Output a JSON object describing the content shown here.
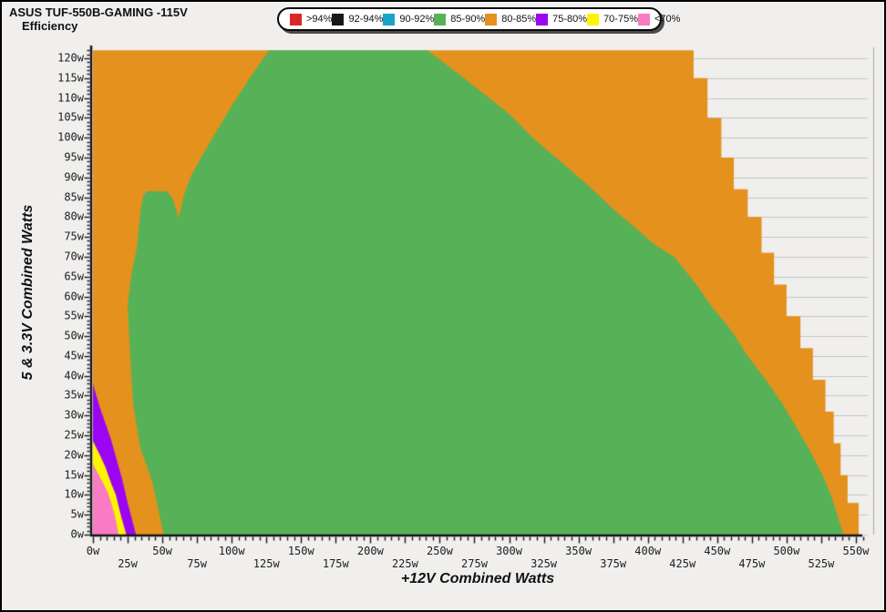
{
  "header": {
    "title_line1": "ASUS TUF-550B-GAMING -115V",
    "title_line2": "Efficiency"
  },
  "legend": {
    "items": [
      {
        "label": ">94%",
        "color": "#da2828"
      },
      {
        "label": "92-94%",
        "color": "#181818"
      },
      {
        "label": "90-92%",
        "color": "#19a5c9"
      },
      {
        "label": "85-90%",
        "color": "#57b257"
      },
      {
        "label": "80-85%",
        "color": "#e4911e"
      },
      {
        "label": "75-80%",
        "color": "#9b05f2"
      },
      {
        "label": "70-75%",
        "color": "#fdf500"
      },
      {
        "label": "<70%",
        "color": "#f87bc3"
      }
    ]
  },
  "style": {
    "background": "#f0efee",
    "gridline": "#c5c5c5",
    "plot_edge": "#a6a6a6",
    "axis": "#141414",
    "text": "#1d1d1d"
  },
  "chart_data": {
    "type": "heatmap",
    "title": "ASUS TUF-550B-GAMING -115V Efficiency",
    "xlabel": "+12V Combined Watts",
    "ylabel": "5 & 3.3V Combined Watts",
    "xlim": [
      0,
      562
    ],
    "ylim": [
      0,
      122
    ],
    "grid": true,
    "legend_position": "top-center",
    "x_axis": {
      "major_tick_step": 25,
      "minor_tick_step": 5,
      "labels_row1": [
        "0w",
        "50w",
        "100w",
        "150w",
        "200w",
        "250w",
        "300w",
        "350w",
        "400w",
        "450w",
        "500w",
        "550w"
      ],
      "labels_row2": [
        "25w",
        "75w",
        "125w",
        "175w",
        "225w",
        "275w",
        "325w",
        "375w",
        "425w",
        "475w",
        "525w"
      ]
    },
    "y_axis": {
      "major_tick_step": 5,
      "minor_tick_step": 1,
      "gridline_step": 5,
      "labels": [
        "0w",
        "5w",
        "10w",
        "15w",
        "20w",
        "25w",
        "30w",
        "35w",
        "40w",
        "45w",
        "50w",
        "55w",
        "60w",
        "65w",
        "70w",
        "75w",
        "80w",
        "85w",
        "90w",
        "95w",
        "100w",
        "105w",
        "110w",
        "115w",
        "120w"
      ]
    },
    "regions": [
      {
        "name": "80-85%",
        "color": "#e4911e",
        "polygon": [
          [
            0,
            0
          ],
          [
            0,
            122
          ],
          [
            433,
            122
          ],
          [
            433,
            115
          ],
          [
            443,
            115
          ],
          [
            443,
            105
          ],
          [
            453,
            105
          ],
          [
            453,
            95
          ],
          [
            462,
            95
          ],
          [
            462,
            87
          ],
          [
            472,
            87
          ],
          [
            472,
            80
          ],
          [
            482,
            80
          ],
          [
            482,
            71
          ],
          [
            491,
            71
          ],
          [
            491,
            63
          ],
          [
            500,
            63
          ],
          [
            500,
            55
          ],
          [
            510,
            55
          ],
          [
            510,
            47
          ],
          [
            519,
            47
          ],
          [
            519,
            39
          ],
          [
            528,
            39
          ],
          [
            528,
            31
          ],
          [
            534,
            31
          ],
          [
            534,
            23
          ],
          [
            539,
            23
          ],
          [
            539,
            15
          ],
          [
            544,
            15
          ],
          [
            544,
            8
          ],
          [
            552,
            8
          ],
          [
            552,
            0
          ]
        ]
      },
      {
        "name": "85-90%",
        "color": "#57b257",
        "polygon": [
          [
            51,
            0
          ],
          [
            43,
            13
          ],
          [
            34,
            22
          ],
          [
            29,
            33
          ],
          [
            27,
            44
          ],
          [
            25,
            58
          ],
          [
            28,
            66
          ],
          [
            31.5,
            72
          ],
          [
            34.5,
            82
          ],
          [
            36.5,
            85.5
          ],
          [
            39,
            86.5
          ],
          [
            53,
            86.5
          ],
          [
            57,
            85
          ],
          [
            60,
            82
          ],
          [
            61,
            79.6
          ],
          [
            63,
            81.5
          ],
          [
            66,
            86
          ],
          [
            71,
            90.6
          ],
          [
            78,
            95
          ],
          [
            88,
            101
          ],
          [
            100,
            108
          ],
          [
            113,
            115
          ],
          [
            121,
            119
          ],
          [
            127,
            122
          ],
          [
            241,
            122
          ],
          [
            260,
            117
          ],
          [
            282,
            111
          ],
          [
            300,
            106
          ],
          [
            317,
            100
          ],
          [
            337,
            94
          ],
          [
            357,
            88
          ],
          [
            375,
            82
          ],
          [
            392,
            77
          ],
          [
            405,
            73
          ],
          [
            419,
            70
          ],
          [
            435,
            63
          ],
          [
            447,
            57
          ],
          [
            460,
            51.5
          ],
          [
            472,
            45
          ],
          [
            485,
            39
          ],
          [
            497,
            33
          ],
          [
            507,
            27
          ],
          [
            517,
            21
          ],
          [
            526,
            15
          ],
          [
            533,
            9
          ],
          [
            541,
            0
          ]
        ]
      },
      {
        "name": "75-80%",
        "color": "#9b05f2",
        "polygon": [
          [
            0,
            0
          ],
          [
            0,
            37.9
          ],
          [
            5,
            32
          ],
          [
            9,
            28
          ],
          [
            13,
            24
          ],
          [
            17,
            19
          ],
          [
            21,
            14
          ],
          [
            25,
            8
          ],
          [
            28,
            4
          ],
          [
            31,
            0
          ]
        ]
      },
      {
        "name": "70-75%",
        "color": "#fdf500",
        "polygon": [
          [
            0,
            0
          ],
          [
            0,
            23.6
          ],
          [
            5,
            20
          ],
          [
            9,
            17
          ],
          [
            13,
            13
          ],
          [
            16.5,
            10
          ],
          [
            20,
            5
          ],
          [
            24,
            0
          ]
        ]
      },
      {
        "name": "<70%",
        "color": "#f87bc3",
        "polygon": [
          [
            0,
            0
          ],
          [
            0,
            17.7
          ],
          [
            5,
            14.5
          ],
          [
            8,
            12.5
          ],
          [
            11,
            10.3
          ],
          [
            14,
            7
          ],
          [
            16,
            4.5
          ],
          [
            18.5,
            0
          ]
        ]
      }
    ]
  }
}
